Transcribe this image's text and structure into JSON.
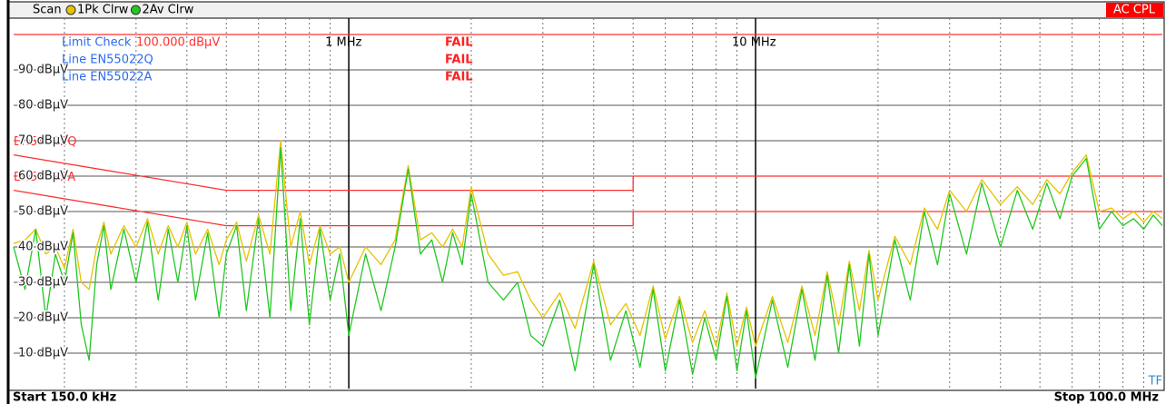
{
  "header": {
    "mode": "Scan",
    "badge": "AC CPL"
  },
  "limit_check": {
    "rows": [
      {
        "label": "Limit Check",
        "result": "FAIL"
      },
      {
        "label": "Line EN55022Q",
        "result": "FAIL"
      },
      {
        "label": "Line EN55022A",
        "result": "FAIL"
      }
    ]
  },
  "chart_data": {
    "type": "line",
    "xscale": "log",
    "xlim": [
      0.15,
      100
    ],
    "ylim": [
      0,
      100
    ],
    "xticks": [
      {
        "value": 1,
        "label": "1 MHz"
      },
      {
        "value": 10,
        "label": "10 MHz"
      }
    ],
    "xminorticks": [
      0.2,
      0.3,
      0.4,
      0.5,
      0.6,
      0.7,
      0.8,
      0.9,
      2,
      3,
      4,
      5,
      6,
      7,
      8,
      9,
      20,
      30,
      40,
      50,
      60,
      70,
      80,
      90
    ],
    "yticks": [
      {
        "value": 10,
        "label": "10 dBµV"
      },
      {
        "value": 20,
        "label": "20 dBµV"
      },
      {
        "value": 30,
        "label": "30 dBµV"
      },
      {
        "value": 40,
        "label": "40 dBµV"
      },
      {
        "value": 50,
        "label": "50 dBµV"
      },
      {
        "value": 60,
        "label": "60 dBµV"
      },
      {
        "value": 70,
        "label": "70 dBµV"
      },
      {
        "value": 80,
        "label": "80 dBµV"
      },
      {
        "value": 90,
        "label": "90 dBµV"
      }
    ],
    "grid": true,
    "display_line": {
      "value": 100,
      "label": "100.000 dBµV"
    },
    "start_label": "Start 150.0 kHz",
    "stop_label": "Stop 100.0 MHz",
    "corner_label": "TF",
    "x": [
      0.15,
      0.16,
      0.17,
      0.18,
      0.19,
      0.2,
      0.21,
      0.22,
      0.23,
      0.24,
      0.25,
      0.26,
      0.28,
      0.3,
      0.32,
      0.34,
      0.36,
      0.38,
      0.4,
      0.42,
      0.45,
      0.48,
      0.5,
      0.53,
      0.56,
      0.6,
      0.64,
      0.68,
      0.72,
      0.76,
      0.8,
      0.85,
      0.9,
      0.95,
      1.0,
      1.1,
      1.2,
      1.3,
      1.4,
      1.5,
      1.6,
      1.7,
      1.8,
      1.9,
      2.0,
      2.2,
      2.4,
      2.6,
      2.8,
      3.0,
      3.3,
      3.6,
      4.0,
      4.4,
      4.8,
      5.2,
      5.6,
      6.0,
      6.5,
      7,
      7.5,
      8,
      8.5,
      9,
      9.5,
      10,
      11,
      12,
      13,
      14,
      15,
      16,
      17,
      18,
      19,
      20,
      22,
      24,
      26,
      28,
      30,
      33,
      36,
      40,
      44,
      48,
      52,
      56,
      60,
      65,
      70,
      75,
      80,
      85,
      90,
      95,
      100
    ],
    "series": [
      {
        "name": "1Pk Clrw",
        "color": "#e6c200",
        "values": [
          41,
          42,
          45,
          38,
          40,
          34,
          45,
          30,
          28,
          40,
          47,
          38,
          46,
          40,
          48,
          38,
          46,
          40,
          47,
          38,
          45,
          35,
          42,
          47,
          36,
          49,
          38,
          70,
          40,
          50,
          35,
          46,
          38,
          40,
          30,
          40,
          35,
          42,
          63,
          42,
          44,
          40,
          45,
          40,
          57,
          38,
          32,
          33,
          25,
          20,
          27,
          17,
          36,
          18,
          24,
          15,
          29,
          14,
          26,
          13,
          22,
          12,
          27,
          12,
          23,
          12,
          26,
          13,
          29,
          15,
          33,
          18,
          36,
          22,
          39,
          25,
          43,
          35,
          51,
          45,
          56,
          50,
          59,
          52,
          57,
          52,
          59,
          55,
          61,
          66,
          50,
          51,
          48,
          50,
          47,
          50,
          48
        ]
      },
      {
        "name": "2Av Clrw",
        "color": "#22c822",
        "values": [
          40,
          28,
          45,
          20,
          38,
          30,
          44,
          18,
          8,
          35,
          46,
          28,
          45,
          30,
          47,
          25,
          45,
          30,
          46,
          25,
          44,
          20,
          38,
          46,
          22,
          48,
          20,
          68,
          22,
          48,
          18,
          45,
          25,
          38,
          15,
          38,
          22,
          40,
          62,
          38,
          42,
          30,
          44,
          35,
          55,
          30,
          25,
          30,
          15,
          12,
          25,
          5,
          35,
          8,
          22,
          6,
          28,
          5,
          25,
          4,
          20,
          8,
          26,
          5,
          22,
          3,
          25,
          6,
          28,
          8,
          32,
          10,
          35,
          12,
          38,
          15,
          42,
          25,
          50,
          35,
          55,
          38,
          58,
          40,
          56,
          45,
          58,
          48,
          60,
          65,
          45,
          50,
          46,
          48,
          45,
          49,
          46
        ]
      }
    ],
    "limit_lines": [
      {
        "name": "EN55022Q",
        "color": "#ff3030",
        "x": [
          0.15,
          0.5,
          5,
          5,
          100
        ],
        "values": [
          66,
          56,
          56,
          60,
          60
        ]
      },
      {
        "name": "EN55022A",
        "color": "#ff3030",
        "x": [
          0.15,
          0.5,
          5,
          5,
          100
        ],
        "values": [
          56,
          46,
          46,
          50,
          50
        ]
      }
    ]
  }
}
